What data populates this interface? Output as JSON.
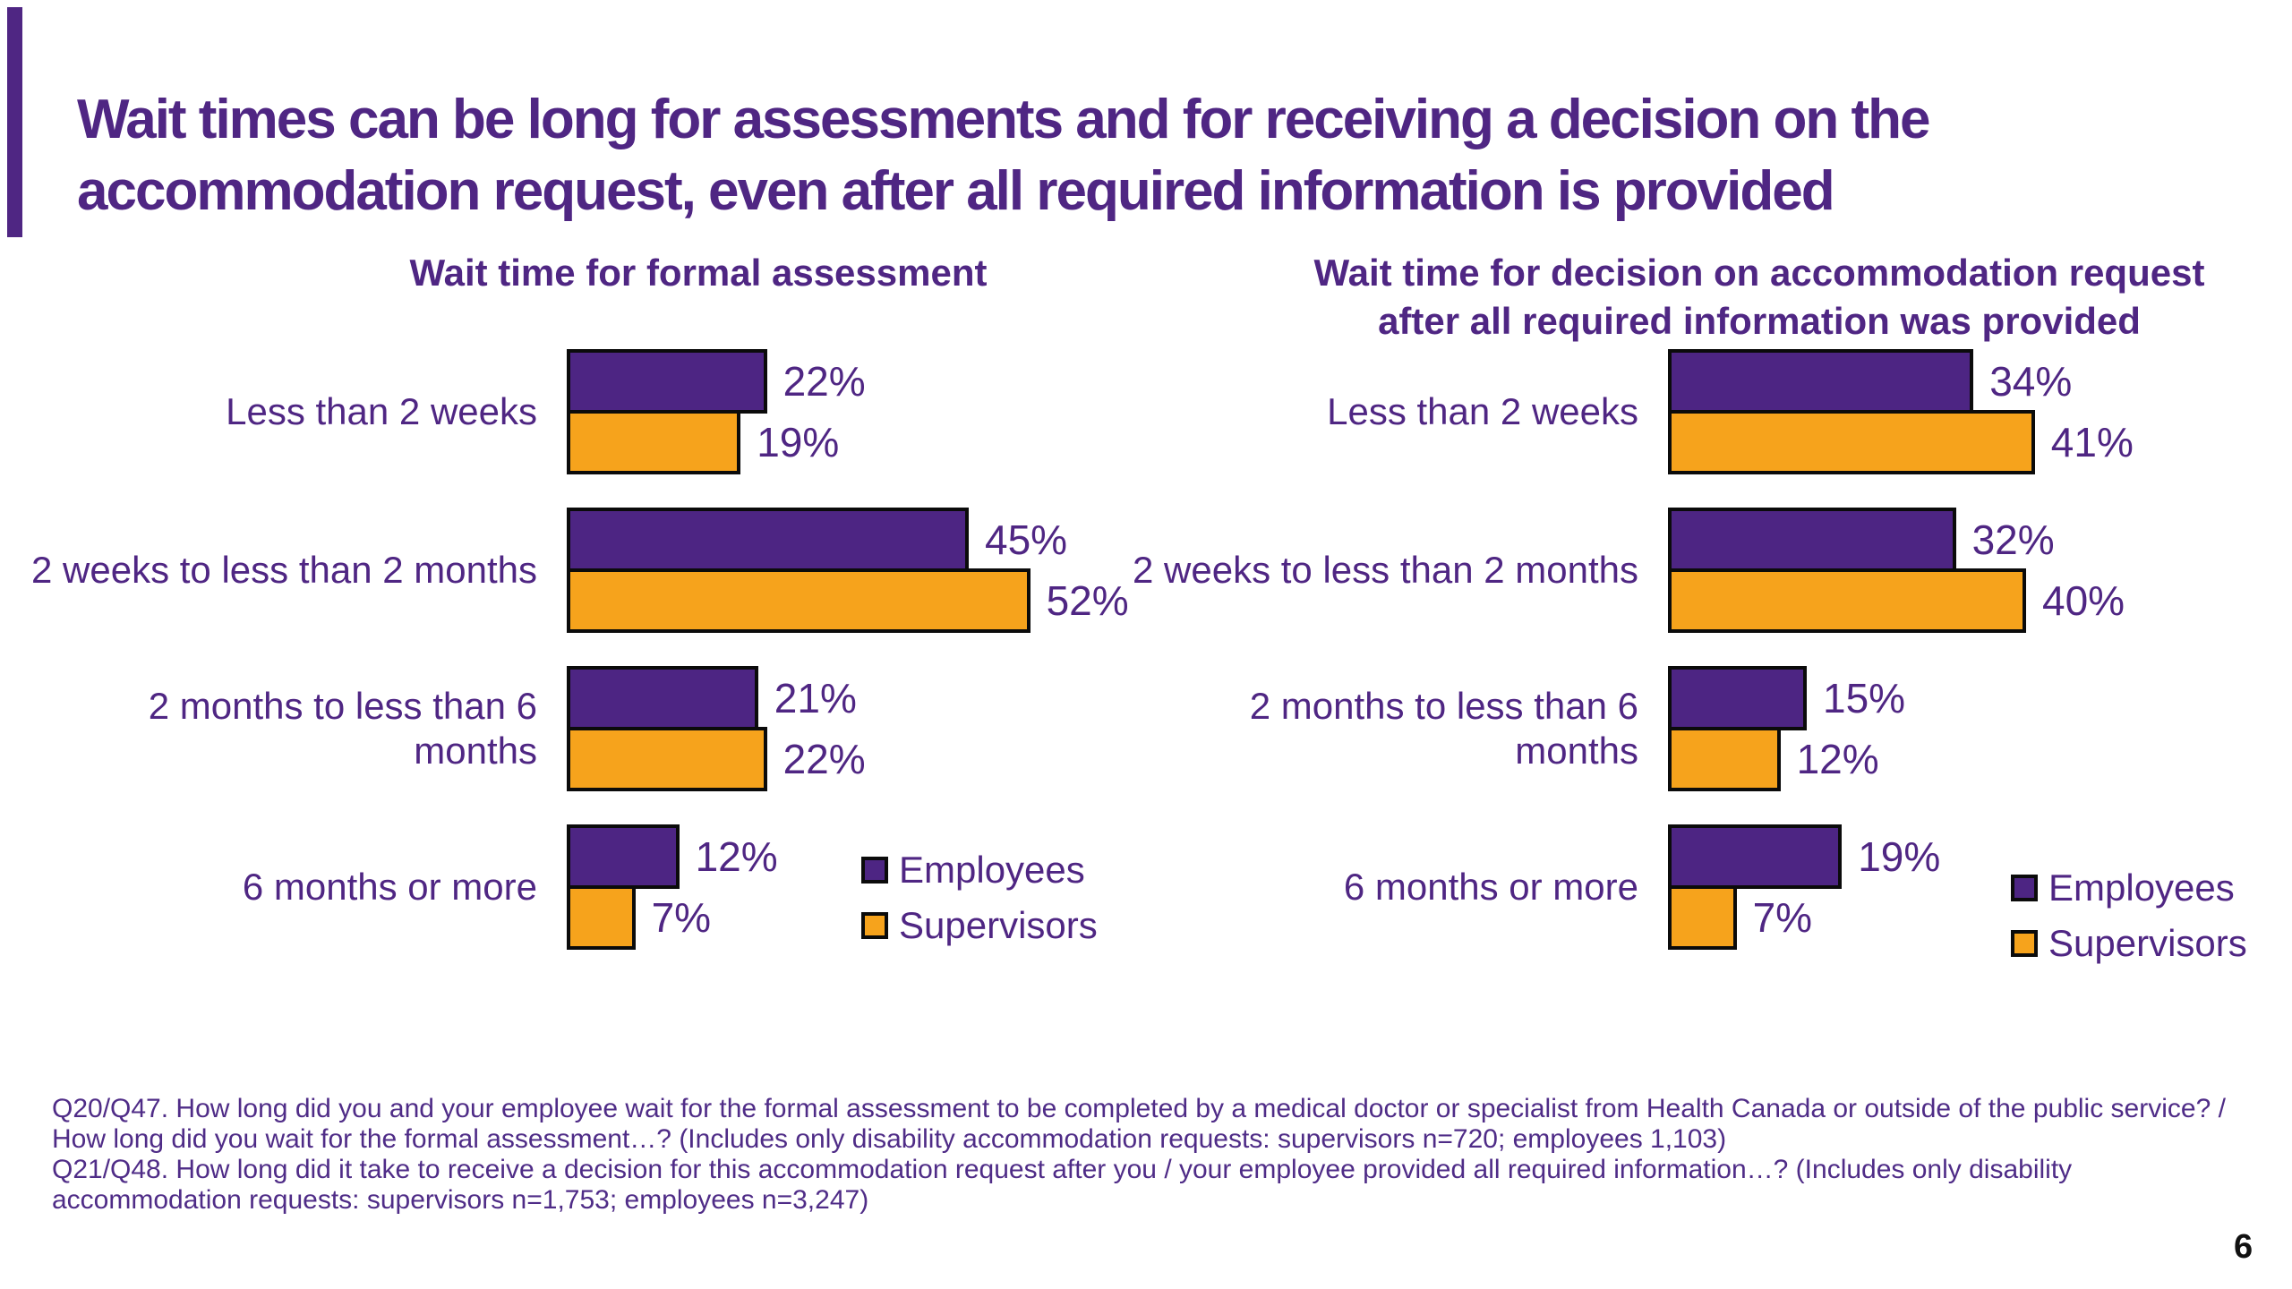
{
  "slide": {
    "title": "Wait times can be long for assessments and for receiving a decision on the\naccommodation request, even after all required information is provided",
    "page_number": "6"
  },
  "colors": {
    "accent_purple": "#4F2683",
    "bar_purple": "#4D2583",
    "bar_orange": "#F6A31C",
    "bar_border": "#0b0b0b",
    "text_purple": "#4F2683"
  },
  "chart_data": [
    {
      "type": "bar",
      "orientation": "horizontal",
      "title": "Wait time for formal assessment",
      "categories": [
        "Less than 2 weeks",
        "2 weeks to less than 2 months",
        "2 months to less than 6\nmonths",
        "6 months or more"
      ],
      "series": [
        {
          "name": "Employees",
          "values": [
            22,
            45,
            21,
            12
          ]
        },
        {
          "name": "Supervisors",
          "values": [
            19,
            52,
            22,
            7
          ]
        }
      ],
      "unit": "%",
      "xlim": [
        0,
        60
      ],
      "grid": false,
      "value_labels": true,
      "legend_position": "bottom-right"
    },
    {
      "type": "bar",
      "orientation": "horizontal",
      "title": "Wait time for decision on accommodation request\nafter all required information was provided",
      "categories": [
        "Less than 2 weeks",
        "2 weeks to less than 2 months",
        "2 months to less than 6\nmonths",
        "6 months or more"
      ],
      "series": [
        {
          "name": "Employees",
          "values": [
            34,
            32,
            15,
            19
          ]
        },
        {
          "name": "Supervisors",
          "values": [
            41,
            40,
            12,
            7
          ]
        }
      ],
      "unit": "%",
      "xlim": [
        0,
        60
      ],
      "grid": false,
      "value_labels": true,
      "legend_position": "bottom-right"
    }
  ],
  "footnote": {
    "lines": [
      "Q20/Q47. How long did you and your employee wait for the formal assessment to be completed by a medical doctor or specialist from Health Canada or outside of the public service? /",
      "How long did you wait for the formal assessment…? (Includes only disability accommodation requests: supervisors n=720; employees 1,103)",
      "Q21/Q48. How long did it take to receive a decision for this accommodation request after you / your employee provided all required information…? (Includes only disability",
      "accommodation requests: supervisors n=1,753; employees n=3,247)"
    ]
  }
}
